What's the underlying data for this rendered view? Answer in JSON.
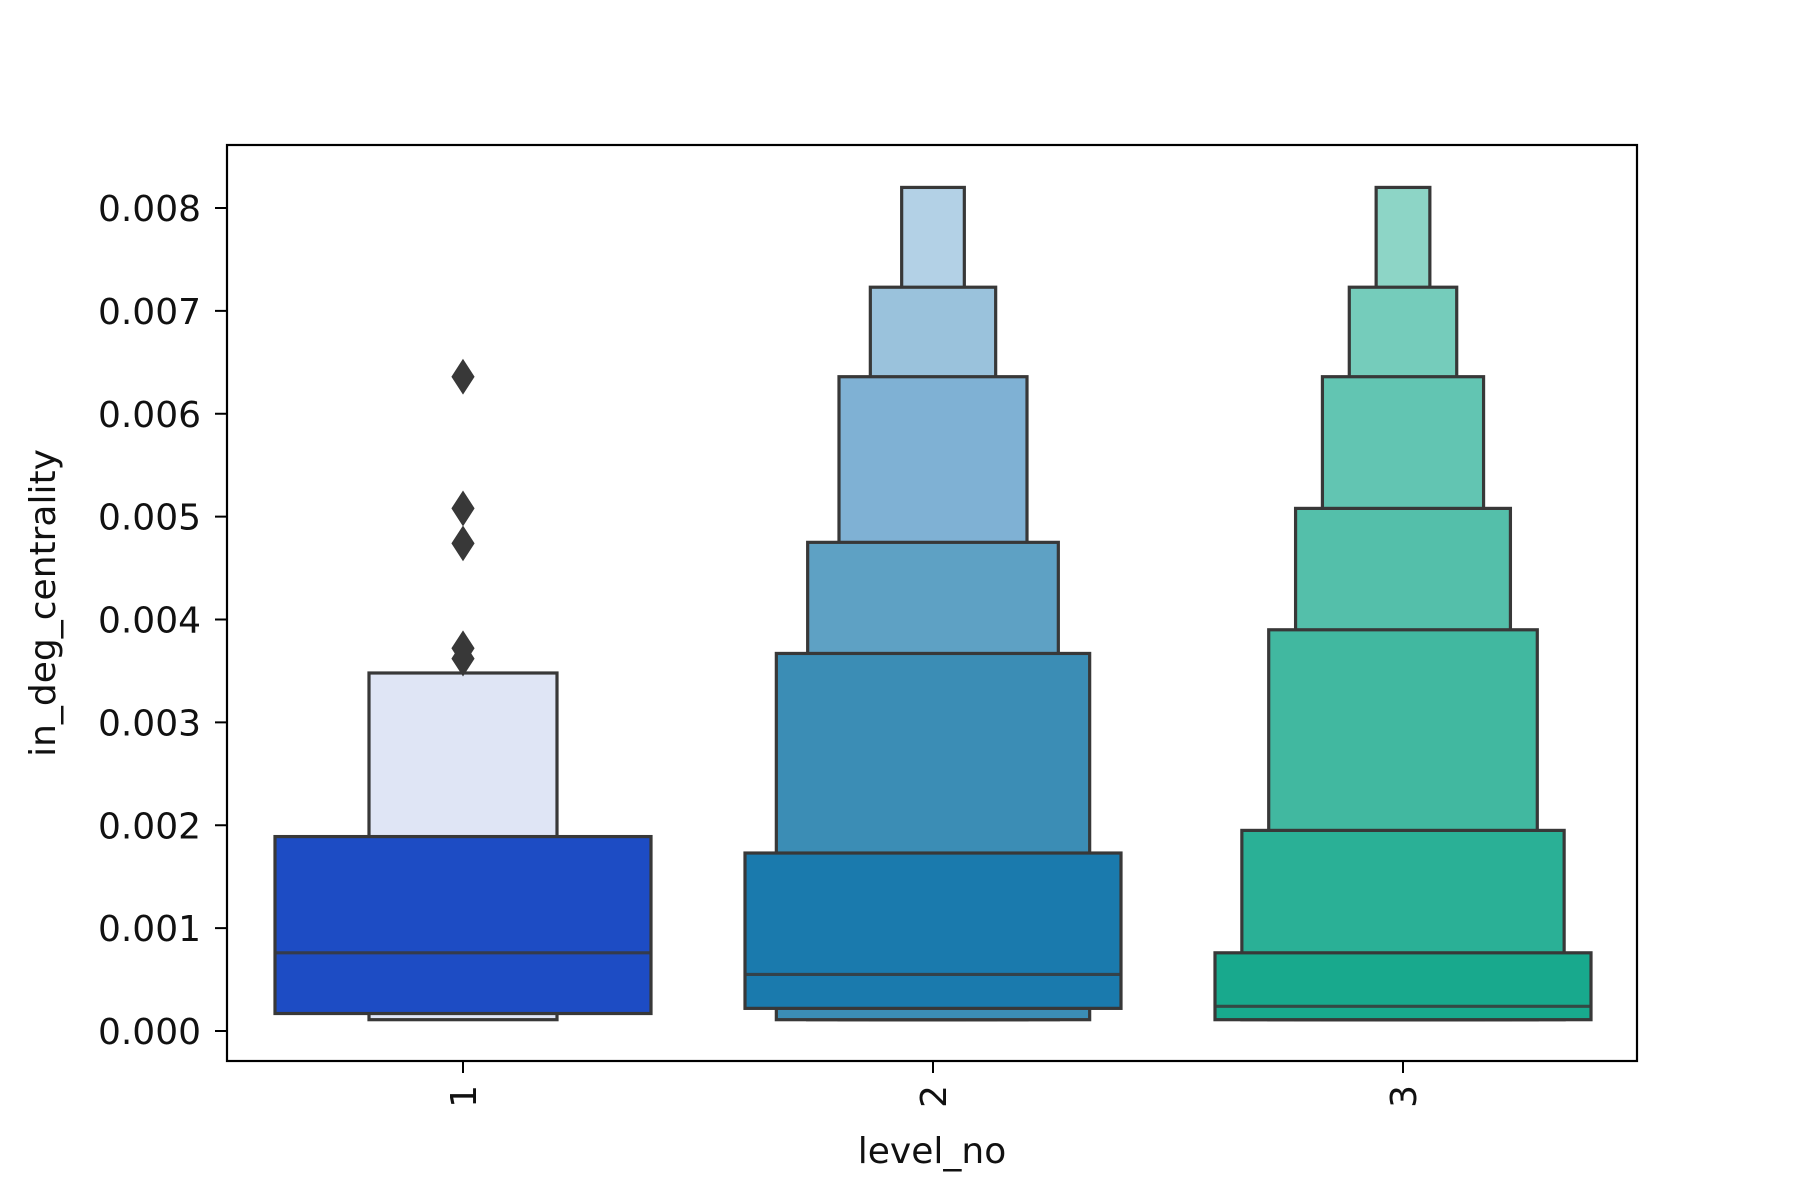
{
  "chart_data": {
    "type": "boxen",
    "xlabel": "level_no",
    "ylabel": "in_deg_centrality",
    "ylim": [
      -0.0003,
      0.0086
    ],
    "yticks": [
      0.0,
      0.001,
      0.002,
      0.003,
      0.004,
      0.005,
      0.006,
      0.007,
      0.008
    ],
    "ytick_labels": [
      "0.000",
      "0.001",
      "0.002",
      "0.003",
      "0.004",
      "0.005",
      "0.006",
      "0.007",
      "0.008"
    ],
    "categories": [
      "1",
      "2",
      "3"
    ],
    "series": [
      {
        "category": "1",
        "median": 0.00076,
        "boxes": [
          {
            "low": 0.00017,
            "high": 0.00189,
            "color": "#1d4cc4"
          },
          {
            "low": 0.00011,
            "high": 0.00348,
            "color": "#dfe5f5"
          }
        ],
        "outliers": [
          0.00362,
          0.00372,
          0.00474,
          0.00508,
          0.00636
        ]
      },
      {
        "category": "2",
        "median": 0.00055,
        "boxes": [
          {
            "low": 0.00022,
            "high": 0.00173,
            "color": "#1a7aad"
          },
          {
            "low": 0.00011,
            "high": 0.00367,
            "color": "#3b8db5"
          },
          {
            "low": 0.00011,
            "high": 0.00475,
            "color": "#5ea1c4"
          },
          {
            "low": 0.00011,
            "high": 0.00636,
            "color": "#7fb1d4"
          },
          {
            "low": 0.00011,
            "high": 0.00723,
            "color": "#9ac2dc"
          },
          {
            "low": 0.00011,
            "high": 0.0082,
            "color": "#b3d1e6"
          }
        ],
        "outliers": []
      },
      {
        "category": "3",
        "median": 0.00024,
        "boxes": [
          {
            "low": 0.00011,
            "high": 0.00076,
            "color": "#18a98d"
          },
          {
            "low": 0.00011,
            "high": 0.00195,
            "color": "#2ab096"
          },
          {
            "low": 0.00011,
            "high": 0.0039,
            "color": "#41b8a0"
          },
          {
            "low": 0.00011,
            "high": 0.00508,
            "color": "#54bfaa"
          },
          {
            "low": 0.00011,
            "high": 0.00636,
            "color": "#62c5b2"
          },
          {
            "low": 0.00011,
            "high": 0.00723,
            "color": "#75ccbb"
          },
          {
            "low": 0.00011,
            "high": 0.0082,
            "color": "#8dd5c6"
          }
        ],
        "outliers": []
      }
    ],
    "edge_color": "#383838",
    "grid": false
  }
}
